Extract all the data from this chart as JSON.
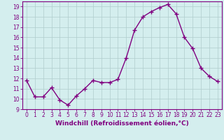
{
  "hours": [
    0,
    1,
    2,
    3,
    4,
    5,
    6,
    7,
    8,
    9,
    10,
    11,
    12,
    13,
    14,
    15,
    16,
    17,
    18,
    19,
    20,
    21,
    22,
    23
  ],
  "values": [
    11.8,
    10.2,
    10.2,
    11.1,
    9.9,
    9.4,
    10.3,
    11.0,
    11.8,
    11.6,
    11.6,
    11.9,
    14.0,
    16.7,
    18.0,
    18.5,
    18.9,
    19.2,
    18.3,
    16.0,
    14.9,
    13.0,
    12.2,
    11.7
  ],
  "line_color": "#800080",
  "marker": "+",
  "marker_size": 4,
  "line_width": 1.0,
  "bg_color": "#d4eeee",
  "grid_color": "#b0cccc",
  "xlabel": "Windchill (Refroidissement éolien,°C)",
  "xlim": [
    -0.5,
    23.5
  ],
  "ylim": [
    9,
    19.5
  ],
  "yticks": [
    9,
    10,
    11,
    12,
    13,
    14,
    15,
    16,
    17,
    18,
    19
  ],
  "xticks": [
    0,
    1,
    2,
    3,
    4,
    5,
    6,
    7,
    8,
    9,
    10,
    11,
    12,
    13,
    14,
    15,
    16,
    17,
    18,
    19,
    20,
    21,
    22,
    23
  ],
  "tick_fontsize": 5.5,
  "xlabel_fontsize": 6.5
}
